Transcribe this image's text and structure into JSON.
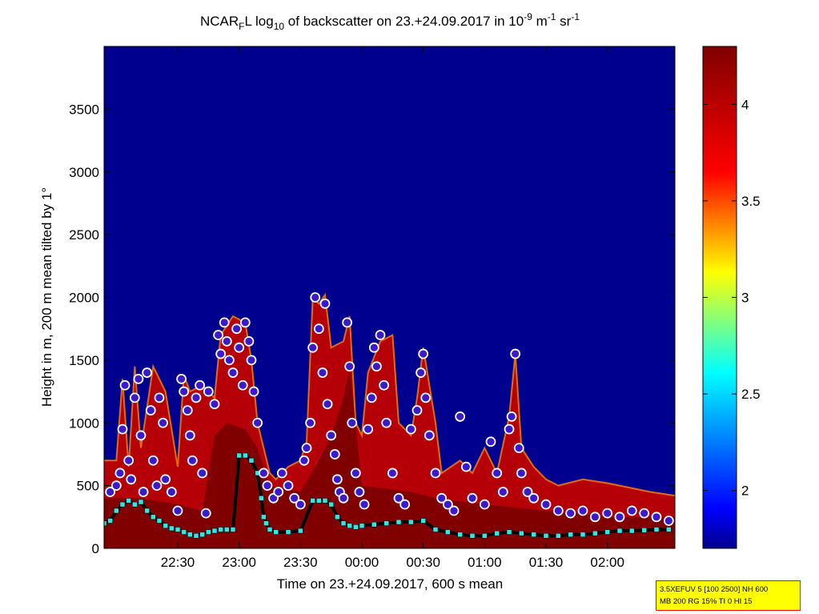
{
  "chart_data": {
    "type": "heatmap",
    "title": {
      "prefix": "NCAR",
      "sub_f": "F",
      "after_f": "L log",
      "sub_10": "10",
      "mid": " of backscatter on 23.+24.09.2017 in 10",
      "sup_m9": "-9",
      "unit_m": " m",
      "sup_m1": "-1",
      "unit_sr": " sr",
      "sup_sr": "-1"
    },
    "xlabel": "Time on 23.+24.09.2017, 600 s mean",
    "ylabel": "Height in m, 200 m mean tilted by 1°",
    "x_ticks": [
      "22:30",
      "23:00",
      "23:30",
      "00:00",
      "00:30",
      "01:00",
      "01:30",
      "02:00"
    ],
    "x_tick_hours": [
      -1.5,
      -1.0,
      -0.5,
      0.0,
      0.5,
      1.0,
      1.5,
      2.0
    ],
    "x_range_hours": [
      -2.1,
      2.55
    ],
    "y_ticks": [
      0,
      500,
      1000,
      1500,
      2000,
      2500,
      3000,
      3500
    ],
    "ylim": [
      0,
      4000
    ],
    "colorbar": {
      "ticks": [
        2,
        2.5,
        3,
        3.5,
        4
      ],
      "tick_labels": [
        "2",
        "2.5",
        "3",
        "3.5",
        "4"
      ],
      "range": [
        1.7,
        4.3
      ],
      "colormap": "jet",
      "colors": [
        "#00008f",
        "#0000ff",
        "#00ffff",
        "#ffff00",
        "#ff0000",
        "#800000"
      ]
    },
    "background_color": "#00008f",
    "cloud_top_envelope_m": [
      [
        -2.1,
        700
      ],
      [
        -2.0,
        700
      ],
      [
        -1.95,
        1350
      ],
      [
        -1.9,
        650
      ],
      [
        -1.85,
        1450
      ],
      [
        -1.8,
        800
      ],
      [
        -1.7,
        1450
      ],
      [
        -1.6,
        1250
      ],
      [
        -1.5,
        650
      ],
      [
        -1.45,
        1380
      ],
      [
        -1.4,
        1250
      ],
      [
        -1.3,
        1300
      ],
      [
        -1.2,
        1200
      ],
      [
        -1.15,
        1700
      ],
      [
        -1.05,
        1850
      ],
      [
        -0.95,
        1800
      ],
      [
        -0.9,
        1500
      ],
      [
        -0.85,
        1000
      ],
      [
        -0.75,
        600
      ],
      [
        -0.7,
        550
      ],
      [
        -0.6,
        650
      ],
      [
        -0.5,
        700
      ],
      [
        -0.45,
        850
      ],
      [
        -0.4,
        2000
      ],
      [
        -0.35,
        1950
      ],
      [
        -0.3,
        2020
      ],
      [
        -0.25,
        1600
      ],
      [
        -0.15,
        1650
      ],
      [
        -0.1,
        1850
      ],
      [
        -0.05,
        1000
      ],
      [
        0.0,
        900
      ],
      [
        0.05,
        1400
      ],
      [
        0.15,
        1650
      ],
      [
        0.25,
        1700
      ],
      [
        0.3,
        1000
      ],
      [
        0.4,
        900
      ],
      [
        0.45,
        1200
      ],
      [
        0.5,
        1600
      ],
      [
        0.6,
        1000
      ],
      [
        0.65,
        600
      ],
      [
        0.8,
        700
      ],
      [
        0.9,
        600
      ],
      [
        1.0,
        800
      ],
      [
        1.1,
        600
      ],
      [
        1.2,
        1050
      ],
      [
        1.25,
        1550
      ],
      [
        1.3,
        800
      ],
      [
        1.4,
        650
      ],
      [
        1.5,
        550
      ],
      [
        1.6,
        500
      ],
      [
        1.8,
        550
      ],
      [
        2.0,
        520
      ],
      [
        2.2,
        480
      ],
      [
        2.35,
        450
      ],
      [
        2.55,
        420
      ]
    ],
    "dense_layer_top_m": [
      [
        -2.1,
        400
      ],
      [
        -1.8,
        400
      ],
      [
        -1.5,
        350
      ],
      [
        -1.3,
        300
      ],
      [
        -1.2,
        900
      ],
      [
        -1.1,
        1000
      ],
      [
        -0.95,
        950
      ],
      [
        -0.85,
        800
      ],
      [
        -0.75,
        500
      ],
      [
        -0.5,
        450
      ],
      [
        -0.35,
        700
      ],
      [
        -0.25,
        900
      ],
      [
        -0.15,
        1200
      ],
      [
        -0.1,
        1450
      ],
      [
        0.0,
        500
      ],
      [
        0.4,
        450
      ],
      [
        0.6,
        400
      ],
      [
        1.0,
        350
      ],
      [
        1.5,
        300
      ],
      [
        2.0,
        250
      ],
      [
        2.55,
        250
      ]
    ],
    "series": [
      {
        "name": "cloud_top",
        "marker": "circle",
        "points": [
          [
            -2.05,
            450
          ],
          [
            -2.0,
            500
          ],
          [
            -1.97,
            600
          ],
          [
            -1.95,
            950
          ],
          [
            -1.93,
            1300
          ],
          [
            -1.9,
            700
          ],
          [
            -1.88,
            550
          ],
          [
            -1.85,
            1200
          ],
          [
            -1.82,
            1350
          ],
          [
            -1.8,
            900
          ],
          [
            -1.78,
            450
          ],
          [
            -1.75,
            1400
          ],
          [
            -1.72,
            1100
          ],
          [
            -1.7,
            700
          ],
          [
            -1.67,
            500
          ],
          [
            -1.65,
            1200
          ],
          [
            -1.62,
            1000
          ],
          [
            -1.6,
            550
          ],
          [
            -1.55,
            450
          ],
          [
            -1.5,
            300
          ],
          [
            -1.47,
            1350
          ],
          [
            -1.45,
            1250
          ],
          [
            -1.42,
            1100
          ],
          [
            -1.4,
            900
          ],
          [
            -1.38,
            700
          ],
          [
            -1.35,
            1200
          ],
          [
            -1.32,
            1300
          ],
          [
            -1.3,
            600
          ],
          [
            -1.27,
            280
          ],
          [
            -1.25,
            1250
          ],
          [
            -1.2,
            1150
          ],
          [
            -1.17,
            1700
          ],
          [
            -1.15,
            1550
          ],
          [
            -1.12,
            1800
          ],
          [
            -1.1,
            1650
          ],
          [
            -1.08,
            1500
          ],
          [
            -1.05,
            1400
          ],
          [
            -1.02,
            1750
          ],
          [
            -1.0,
            1600
          ],
          [
            -0.97,
            1300
          ],
          [
            -0.95,
            1800
          ],
          [
            -0.92,
            1650
          ],
          [
            -0.9,
            1500
          ],
          [
            -0.88,
            1250
          ],
          [
            -0.85,
            1000
          ],
          [
            -0.8,
            600
          ],
          [
            -0.77,
            500
          ],
          [
            -0.72,
            400
          ],
          [
            -0.68,
            450
          ],
          [
            -0.65,
            600
          ],
          [
            -0.6,
            500
          ],
          [
            -0.55,
            400
          ],
          [
            -0.5,
            350
          ],
          [
            -0.47,
            700
          ],
          [
            -0.45,
            800
          ],
          [
            -0.42,
            1000
          ],
          [
            -0.4,
            1600
          ],
          [
            -0.38,
            2000
          ],
          [
            -0.35,
            1750
          ],
          [
            -0.32,
            1400
          ],
          [
            -0.3,
            1950
          ],
          [
            -0.28,
            1150
          ],
          [
            -0.25,
            900
          ],
          [
            -0.22,
            750
          ],
          [
            -0.2,
            550
          ],
          [
            -0.18,
            450
          ],
          [
            -0.15,
            400
          ],
          [
            -0.12,
            1800
          ],
          [
            -0.1,
            1450
          ],
          [
            -0.08,
            1000
          ],
          [
            -0.05,
            600
          ],
          [
            -0.02,
            450
          ],
          [
            0.02,
            350
          ],
          [
            0.05,
            950
          ],
          [
            0.08,
            1200
          ],
          [
            0.1,
            1600
          ],
          [
            0.12,
            1450
          ],
          [
            0.15,
            1700
          ],
          [
            0.18,
            1300
          ],
          [
            0.2,
            1000
          ],
          [
            0.25,
            600
          ],
          [
            0.3,
            400
          ],
          [
            0.35,
            350
          ],
          [
            0.4,
            950
          ],
          [
            0.45,
            1100
          ],
          [
            0.48,
            1400
          ],
          [
            0.5,
            1550
          ],
          [
            0.52,
            1200
          ],
          [
            0.55,
            900
          ],
          [
            0.6,
            600
          ],
          [
            0.65,
            400
          ],
          [
            0.7,
            350
          ],
          [
            0.75,
            300
          ],
          [
            0.8,
            1050
          ],
          [
            0.85,
            650
          ],
          [
            0.9,
            400
          ],
          [
            1.0,
            350
          ],
          [
            1.05,
            850
          ],
          [
            1.1,
            600
          ],
          [
            1.15,
            450
          ],
          [
            1.2,
            950
          ],
          [
            1.22,
            1050
          ],
          [
            1.25,
            1550
          ],
          [
            1.28,
            800
          ],
          [
            1.3,
            600
          ],
          [
            1.35,
            450
          ],
          [
            1.4,
            400
          ],
          [
            1.5,
            350
          ],
          [
            1.6,
            300
          ],
          [
            1.7,
            280
          ],
          [
            1.8,
            300
          ],
          [
            1.9,
            250
          ],
          [
            2.0,
            280
          ],
          [
            2.1,
            250
          ],
          [
            2.2,
            300
          ],
          [
            2.3,
            280
          ],
          [
            2.4,
            250
          ],
          [
            2.5,
            220
          ]
        ]
      },
      {
        "name": "cloud_base",
        "marker": "square",
        "points": [
          [
            -2.1,
            200
          ],
          [
            -2.05,
            220
          ],
          [
            -2.0,
            300
          ],
          [
            -1.95,
            350
          ],
          [
            -1.9,
            380
          ],
          [
            -1.85,
            350
          ],
          [
            -1.8,
            370
          ],
          [
            -1.75,
            300
          ],
          [
            -1.7,
            250
          ],
          [
            -1.65,
            220
          ],
          [
            -1.6,
            180
          ],
          [
            -1.55,
            160
          ],
          [
            -1.5,
            150
          ],
          [
            -1.45,
            130
          ],
          [
            -1.4,
            110
          ],
          [
            -1.35,
            100
          ],
          [
            -1.3,
            110
          ],
          [
            -1.25,
            130
          ],
          [
            -1.2,
            140
          ],
          [
            -1.15,
            150
          ],
          [
            -1.1,
            150
          ],
          [
            -1.05,
            150
          ],
          [
            -1.0,
            740
          ],
          [
            -0.95,
            740
          ],
          [
            -0.9,
            700
          ],
          [
            -0.85,
            600
          ],
          [
            -0.82,
            400
          ],
          [
            -0.8,
            250
          ],
          [
            -0.78,
            200
          ],
          [
            -0.75,
            150
          ],
          [
            -0.7,
            130
          ],
          [
            -0.6,
            130
          ],
          [
            -0.5,
            140
          ],
          [
            -0.4,
            380
          ],
          [
            -0.35,
            380
          ],
          [
            -0.3,
            380
          ],
          [
            -0.25,
            350
          ],
          [
            -0.2,
            250
          ],
          [
            -0.15,
            200
          ],
          [
            -0.1,
            180
          ],
          [
            -0.05,
            170
          ],
          [
            0.0,
            180
          ],
          [
            0.1,
            190
          ],
          [
            0.2,
            200
          ],
          [
            0.3,
            210
          ],
          [
            0.4,
            210
          ],
          [
            0.5,
            220
          ],
          [
            0.6,
            150
          ],
          [
            0.7,
            130
          ],
          [
            0.8,
            110
          ],
          [
            0.9,
            100
          ],
          [
            1.0,
            100
          ],
          [
            1.1,
            120
          ],
          [
            1.2,
            130
          ],
          [
            1.3,
            120
          ],
          [
            1.4,
            110
          ],
          [
            1.5,
            100
          ],
          [
            1.6,
            100
          ],
          [
            1.7,
            110
          ],
          [
            1.8,
            110
          ],
          [
            1.9,
            120
          ],
          [
            2.0,
            130
          ],
          [
            2.1,
            140
          ],
          [
            2.2,
            140
          ],
          [
            2.3,
            145
          ],
          [
            2.4,
            150
          ],
          [
            2.5,
            150
          ]
        ]
      }
    ]
  },
  "info_box": {
    "line1": "3.5XEFUV 5 [100 2500] NH 600",
    "line2": "MB 200 RG 15% TI 0 HI 15"
  }
}
